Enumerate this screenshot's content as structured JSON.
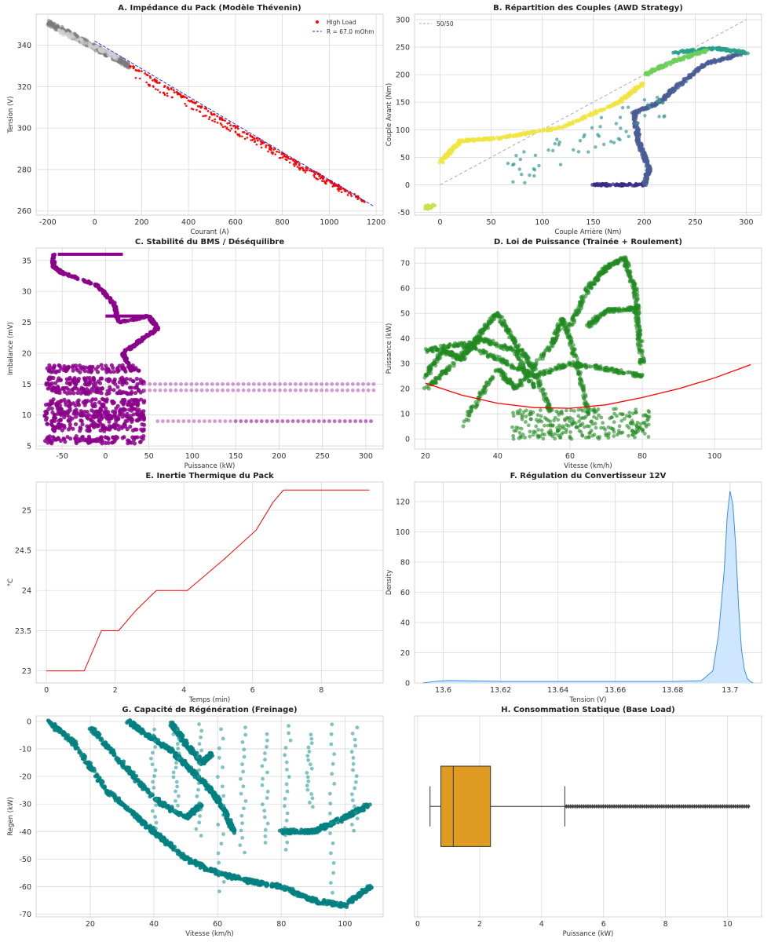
{
  "colors": {
    "red": "#ff0000",
    "gray": "#7a7a7a",
    "lightgray": "#cfcfcf",
    "purple": "#8b008b",
    "green": "#228b22",
    "teal": "#008080",
    "blue_fill": "#cfe6ff",
    "blue_line": "#3a8ee8",
    "orange": "#e09c22",
    "grid": "#d9d9d9"
  },
  "chart_data": [
    {
      "id": "A",
      "type": "scatter",
      "title": "A. Impédance du Pack (Modèle Thévenin)",
      "xlabel": "Courant (A)",
      "ylabel": "Tension (V)",
      "xlim": [
        -250,
        1230
      ],
      "ylim": [
        258,
        355
      ],
      "xticks": [
        -200,
        0,
        200,
        400,
        600,
        800,
        1000,
        1200
      ],
      "yticks": [
        260,
        280,
        300,
        320,
        340
      ],
      "grid": true,
      "legend_position": "top-right",
      "legend": [
        "High Load",
        "R = 67.0 mOhm"
      ],
      "series": [
        {
          "name": "",
          "segments": [
            [
              [
                -200,
                351
              ],
              [
                150,
                330
              ]
            ],
            [
              [
                -150,
                347
              ],
              [
                100,
                334
              ]
            ]
          ],
          "color": "gray"
        },
        {
          "name": "High Load",
          "segments": [
            [
              [
                150,
                330
              ],
              [
                1160,
                264
              ]
            ]
          ],
          "color": "red"
        },
        {
          "name": "",
          "segments": [
            [
              [
                150,
                326
              ],
              [
                1130,
                265
              ]
            ]
          ],
          "color": "red"
        }
      ],
      "fit": {
        "name": "R = 67.0 mOhm",
        "x": [
          0,
          1190
        ],
        "y": [
          342,
          262.3
        ]
      }
    },
    {
      "id": "B",
      "type": "scatter",
      "title": "B. Répartition des Couples (AWD Strategy)",
      "xlabel": "Couple Arrière (Nm)",
      "ylabel": "Couple Avant (Nm)",
      "xlim": [
        -25,
        315
      ],
      "ylim": [
        -55,
        310
      ],
      "xticks": [
        0,
        50,
        100,
        150,
        200,
        250,
        300
      ],
      "yticks": [
        -50,
        0,
        50,
        100,
        150,
        200,
        250,
        300
      ],
      "grid": true,
      "legend_position": "top-left",
      "legend": [
        "50/50"
      ],
      "ref_line": {
        "name": "50/50",
        "x": [
          0,
          300
        ],
        "y": [
          0,
          300
        ]
      },
      "series": [
        {
          "name": "",
          "color": "#3b2a84",
          "segments": [
            [
              [
                150,
                0
              ],
              [
                200,
                0
              ]
            ]
          ]
        },
        {
          "name": "",
          "color": "#4a5d95",
          "segments": [
            [
              [
                200,
                0
              ],
              [
                205,
                30
              ],
              [
                195,
                75
              ],
              [
                190,
                130
              ],
              [
                215,
                150
              ],
              [
                230,
                175
              ],
              [
                260,
                220
              ],
              [
                300,
                240
              ]
            ]
          ]
        },
        {
          "name": "",
          "color": "#2aa08a",
          "segments": [
            [
              [
                230,
                240
              ],
              [
                270,
                248
              ],
              [
                300,
                240
              ]
            ]
          ]
        },
        {
          "name": "",
          "color": "#6ccf5a",
          "segments": [
            [
              [
                200,
                200
              ],
              [
                230,
                225
              ],
              [
                260,
                243
              ]
            ]
          ]
        },
        {
          "name": "",
          "color": "#f0e442",
          "segments": [
            [
              [
                0,
                40
              ],
              [
                20,
                80
              ],
              [
                60,
                85
              ],
              [
                120,
                105
              ],
              [
                175,
                150
              ],
              [
                200,
                185
              ]
            ]
          ]
        }
      ]
    },
    {
      "id": "C",
      "type": "scatter",
      "title": "C. Stabilité du BMS / Déséquilibre",
      "xlabel": "Puissance (kW)",
      "ylabel": "Imbalance (mV)",
      "xlim": [
        -80,
        320
      ],
      "ylim": [
        4.5,
        37
      ],
      "xticks": [
        -50,
        0,
        50,
        100,
        150,
        200,
        250,
        300
      ],
      "yticks": [
        5,
        10,
        15,
        20,
        25,
        30,
        35
      ],
      "grid": true,
      "series": [
        {
          "name": "",
          "color": "purple",
          "segments": [
            [
              [
                -60,
                36
              ],
              [
                -60,
                34
              ],
              [
                -50,
                33
              ],
              [
                -10,
                31
              ],
              [
                10,
                28
              ],
              [
                15,
                25
              ],
              [
                50,
                26
              ],
              [
                60,
                24
              ],
              [
                40,
                22
              ],
              [
                20,
                20
              ],
              [
                30,
                17
              ]
            ]
          ]
        },
        {
          "name": "",
          "color": "purple",
          "bands": [
            [
              -70,
              45,
              6
            ],
            [
              -70,
              45,
              8
            ],
            [
              -70,
              45,
              9.5
            ],
            [
              -70,
              45,
              10.5
            ],
            [
              -70,
              45,
              12
            ],
            [
              -70,
              45,
              14
            ],
            [
              -70,
              45,
              15.5
            ],
            [
              -70,
              40,
              17.5
            ]
          ]
        },
        {
          "name": "",
          "color": "purple",
          "dotted_rows": [
            [
              45,
              310,
              15
            ],
            [
              45,
              310,
              14
            ],
            [
              60,
              310,
              9
            ],
            [
              150,
              310,
              9
            ]
          ]
        }
      ]
    },
    {
      "id": "D",
      "type": "scatter",
      "title": "D. Loi de Puissance (Trainée + Roulement)",
      "xlabel": "Vitesse (km/h)",
      "ylabel": "Puissance (kW)",
      "xlim": [
        17,
        113
      ],
      "ylim": [
        -4,
        76
      ],
      "xticks": [
        20,
        40,
        60,
        80,
        100
      ],
      "yticks": [
        0,
        10,
        20,
        30,
        40,
        50,
        60,
        70
      ],
      "grid": true,
      "series": [
        {
          "name": "",
          "color": "green",
          "segments": [
            [
              [
                20,
                35
              ],
              [
                30,
                38
              ],
              [
                40,
                32
              ],
              [
                50,
                25
              ],
              [
                60,
                30
              ],
              [
                70,
                28
              ],
              [
                80,
                25
              ]
            ],
            [
              [
                20,
                20
              ],
              [
                28,
                30
              ],
              [
                35,
                42
              ],
              [
                40,
                50
              ],
              [
                45,
                38
              ],
              [
                50,
                28
              ],
              [
                55,
                10
              ]
            ],
            [
              [
                60,
                45
              ],
              [
                65,
                60
              ],
              [
                70,
                68
              ],
              [
                75,
                72
              ],
              [
                78,
                60
              ],
              [
                80,
                30
              ]
            ],
            [
              [
                65,
                45
              ],
              [
                70,
                51
              ],
              [
                78,
                52
              ],
              [
                80,
                30
              ]
            ],
            [
              [
                30,
                5
              ],
              [
                40,
                28
              ],
              [
                45,
                20
              ],
              [
                55,
                38
              ],
              [
                58,
                48
              ],
              [
                62,
                30
              ],
              [
                65,
                10
              ]
            ],
            [
              [
                20,
                25
              ],
              [
                25,
                35
              ],
              [
                30,
                32
              ],
              [
                35,
                40
              ],
              [
                45,
                35
              ],
              [
                50,
                20
              ]
            ]
          ]
        }
      ],
      "fit": {
        "x": [
          20,
          30,
          40,
          50,
          60,
          70,
          80,
          90,
          100,
          110
        ],
        "y": [
          22.2,
          17.5,
          14.2,
          12.5,
          12.2,
          13.6,
          16.5,
          20,
          24.3,
          29.6
        ]
      }
    },
    {
      "id": "E",
      "type": "line",
      "title": "E. Inertie Thermique du Pack",
      "xlabel": "Temps (min)",
      "ylabel": "°C",
      "xlim": [
        -0.3,
        9.8
      ],
      "ylim": [
        22.85,
        25.35
      ],
      "xticks": [
        0,
        2,
        4,
        6,
        8
      ],
      "yticks": [
        23.0,
        23.5,
        24.0,
        24.5,
        25.0
      ],
      "grid": true,
      "series": [
        {
          "name": "",
          "color": "red",
          "x": [
            0,
            1.1,
            1.6,
            2.1,
            2.6,
            3.2,
            4.1,
            5.2,
            6.1,
            6.6,
            6.9,
            9.4
          ],
          "y": [
            23,
            23,
            23.5,
            23.5,
            23.75,
            24,
            24,
            24.4,
            24.75,
            25.1,
            25.25,
            25.25
          ]
        }
      ]
    },
    {
      "id": "F",
      "type": "area",
      "title": "F. Régulation du Convertisseur 12V",
      "xlabel": "Tension (V)",
      "ylabel": "Density",
      "xlim": [
        13.59,
        13.711
      ],
      "ylim": [
        0,
        133
      ],
      "xticks": [
        13.6,
        13.62,
        13.64,
        13.66,
        13.68,
        13.7
      ],
      "yticks": [
        0,
        20,
        40,
        60,
        80,
        100,
        120
      ],
      "grid": true,
      "series": [
        {
          "name": "",
          "x": [
            13.593,
            13.598,
            13.602,
            13.62,
            13.64,
            13.66,
            13.68,
            13.69,
            13.694,
            13.696,
            13.698,
            13.699,
            13.7,
            13.701,
            13.702,
            13.703,
            13.704,
            13.705,
            13.706,
            13.707,
            13.708
          ],
          "y": [
            0,
            1.2,
            1.6,
            1,
            1,
            1,
            1,
            1.5,
            8,
            32,
            75,
            110,
            127,
            118,
            90,
            50,
            22,
            9,
            3,
            1,
            0
          ]
        }
      ]
    },
    {
      "id": "G",
      "type": "scatter",
      "title": "G. Capacité de Régénération (Freinage)",
      "xlabel": "Vitesse (km/h)",
      "ylabel": "Regen (kW)",
      "xlim": [
        3,
        112
      ],
      "ylim": [
        -71,
        2
      ],
      "xticks": [
        20,
        40,
        60,
        80,
        100
      ],
      "yticks": [
        0,
        -10,
        -20,
        -30,
        -40,
        -50,
        -60,
        -70
      ],
      "grid": true,
      "series": [
        {
          "name": "",
          "color": "teal",
          "segments": [
            [
              [
                7,
                0
              ],
              [
                15,
                -8
              ],
              [
                25,
                -25
              ],
              [
                35,
                -35
              ],
              [
                42,
                -42
              ],
              [
                50,
                -50
              ],
              [
                60,
                -55
              ],
              [
                70,
                -58
              ],
              [
                80,
                -60
              ],
              [
                90,
                -65
              ],
              [
                100,
                -67
              ],
              [
                108,
                -60
              ]
            ],
            [
              [
                20,
                -2
              ],
              [
                30,
                -15
              ],
              [
                40,
                -28
              ],
              [
                50,
                -35
              ],
              [
                55,
                -30
              ]
            ],
            [
              [
                32,
                0
              ],
              [
                38,
                -5
              ],
              [
                45,
                -10
              ],
              [
                52,
                -18
              ],
              [
                58,
                -25
              ],
              [
                62,
                -32
              ],
              [
                65,
                -40
              ]
            ],
            [
              [
                45,
                0
              ],
              [
                50,
                -8
              ],
              [
                55,
                -15
              ],
              [
                58,
                -12
              ]
            ],
            [
              [
                80,
                -40
              ],
              [
                90,
                -40
              ],
              [
                100,
                -35
              ],
              [
                108,
                -30
              ]
            ]
          ]
        }
      ]
    },
    {
      "id": "H",
      "type": "box",
      "title": "H. Consommation Statique (Base Load)",
      "xlabel": "Puissance (kW)",
      "ylabel": "",
      "xlim": [
        -0.1,
        11.1
      ],
      "xticks": [
        0,
        2,
        4,
        6,
        8,
        10
      ],
      "grid": true,
      "box": {
        "whisker_low": 0.4,
        "q1": 0.75,
        "median": 1.15,
        "q3": 2.35,
        "whisker_high": 4.75,
        "outliers_from": 4.8,
        "outliers_to": 10.7
      }
    }
  ]
}
